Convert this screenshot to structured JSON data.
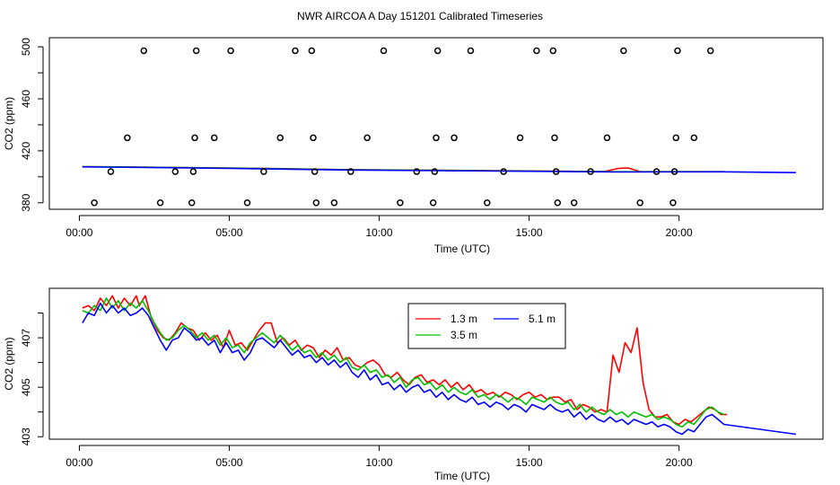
{
  "figure": {
    "title": "NWR AIRCOA A  Day 151201  Calibrated Timeseries"
  },
  "chart_data": [
    {
      "type": "scatter+line",
      "xlabel": "Time (UTC)",
      "ylabel": "CO2 (ppm)",
      "xlim": [
        -1.0,
        24.8
      ],
      "ylim": [
        375,
        507
      ],
      "xticks": [
        {
          "v": 0,
          "label": "00:00"
        },
        {
          "v": 5,
          "label": "05:00"
        },
        {
          "v": 10,
          "label": "10:00"
        },
        {
          "v": 15,
          "label": "15:00"
        },
        {
          "v": 20,
          "label": "20:00"
        }
      ],
      "yticks_major": [
        {
          "v": 380,
          "label": "380"
        },
        {
          "v": 420,
          "label": "420"
        },
        {
          "v": 460,
          "label": "460"
        },
        {
          "v": 500,
          "label": "500"
        }
      ],
      "yticks_minor": [
        400,
        440,
        480
      ],
      "markers": [
        {
          "x": 0.5,
          "y": 380
        },
        {
          "x": 1.05,
          "y": 404
        },
        {
          "x": 1.6,
          "y": 430
        },
        {
          "x": 2.15,
          "y": 497
        },
        {
          "x": 2.7,
          "y": 380
        },
        {
          "x": 3.2,
          "y": 404
        },
        {
          "x": 3.75,
          "y": 380
        },
        {
          "x": 3.8,
          "y": 404
        },
        {
          "x": 3.85,
          "y": 430
        },
        {
          "x": 3.9,
          "y": 497
        },
        {
          "x": 4.5,
          "y": 430
        },
        {
          "x": 5.05,
          "y": 497
        },
        {
          "x": 5.6,
          "y": 380
        },
        {
          "x": 6.15,
          "y": 404
        },
        {
          "x": 6.7,
          "y": 430
        },
        {
          "x": 7.2,
          "y": 497
        },
        {
          "x": 7.75,
          "y": 497
        },
        {
          "x": 7.8,
          "y": 430
        },
        {
          "x": 7.85,
          "y": 404
        },
        {
          "x": 7.9,
          "y": 380
        },
        {
          "x": 8.5,
          "y": 380
        },
        {
          "x": 9.05,
          "y": 404
        },
        {
          "x": 9.6,
          "y": 430
        },
        {
          "x": 10.15,
          "y": 497
        },
        {
          "x": 10.7,
          "y": 380
        },
        {
          "x": 11.25,
          "y": 404
        },
        {
          "x": 11.8,
          "y": 380
        },
        {
          "x": 11.85,
          "y": 404
        },
        {
          "x": 11.9,
          "y": 430
        },
        {
          "x": 11.95,
          "y": 497
        },
        {
          "x": 12.5,
          "y": 430
        },
        {
          "x": 13.05,
          "y": 497
        },
        {
          "x": 13.6,
          "y": 380
        },
        {
          "x": 14.15,
          "y": 404
        },
        {
          "x": 14.7,
          "y": 430
        },
        {
          "x": 15.25,
          "y": 497
        },
        {
          "x": 15.8,
          "y": 497
        },
        {
          "x": 15.85,
          "y": 430
        },
        {
          "x": 15.9,
          "y": 404
        },
        {
          "x": 15.95,
          "y": 380
        },
        {
          "x": 16.5,
          "y": 380
        },
        {
          "x": 17.05,
          "y": 404
        },
        {
          "x": 17.6,
          "y": 430
        },
        {
          "x": 18.15,
          "y": 497
        },
        {
          "x": 18.7,
          "y": 380
        },
        {
          "x": 19.25,
          "y": 404
        },
        {
          "x": 19.8,
          "y": 380
        },
        {
          "x": 19.85,
          "y": 404
        },
        {
          "x": 19.9,
          "y": 430
        },
        {
          "x": 19.95,
          "y": 497
        },
        {
          "x": 20.5,
          "y": 430
        },
        {
          "x": 21.05,
          "y": 497
        }
      ],
      "series": [
        {
          "name": "1.3 m",
          "color": "#ff0000",
          "x": [
            0.1,
            3,
            6,
            9,
            12,
            15,
            17.5,
            18.0,
            18.3,
            18.7,
            19.0,
            21.5
          ],
          "values": [
            407.8,
            407.2,
            406.5,
            405.5,
            405.0,
            404.5,
            404.0,
            406.5,
            406.8,
            404.0,
            403.9,
            403.9
          ]
        },
        {
          "name": "3.5 m",
          "color": "#00c000",
          "x": [
            0.1,
            3,
            6,
            9,
            12,
            15,
            18,
            21.5
          ],
          "values": [
            407.8,
            407.2,
            406.4,
            405.4,
            404.9,
            404.4,
            403.9,
            403.9
          ]
        },
        {
          "name": "5.1 m",
          "color": "#0000ff",
          "x": [
            0.1,
            3,
            6,
            9,
            12,
            15,
            18,
            21.5,
            23.9
          ],
          "values": [
            407.6,
            407.0,
            406.2,
            405.2,
            404.7,
            404.2,
            403.7,
            403.8,
            403.2
          ]
        }
      ]
    },
    {
      "type": "line",
      "xlabel": "Time (UTC)",
      "ylabel": "CO2 (ppm)",
      "xlim": [
        -1.0,
        24.8
      ],
      "ylim": [
        402.9,
        409.0
      ],
      "xticks": [
        {
          "v": 0,
          "label": "00:00"
        },
        {
          "v": 5,
          "label": "05:00"
        },
        {
          "v": 10,
          "label": "10:00"
        },
        {
          "v": 15,
          "label": "15:00"
        },
        {
          "v": 20,
          "label": "20:00"
        }
      ],
      "yticks_major": [
        {
          "v": 403,
          "label": "403"
        },
        {
          "v": 405,
          "label": "405"
        },
        {
          "v": 407,
          "label": "407"
        }
      ],
      "yticks_minor": [
        404,
        406,
        408
      ],
      "legend": {
        "position": "top-center",
        "entries": [
          {
            "label": "1.3 m",
            "color": "#ff0000"
          },
          {
            "label": "5.1 m",
            "color": "#0000ff"
          },
          {
            "label": "3.5 m",
            "color": "#00c000"
          }
        ]
      },
      "series": [
        {
          "name": "1.3 m",
          "color": "#ff0000",
          "x": [
            0.1,
            0.3,
            0.5,
            0.7,
            0.9,
            1.1,
            1.3,
            1.5,
            1.7,
            1.9,
            2.0,
            2.2,
            2.4,
            2.6,
            2.8,
            3.0,
            3.2,
            3.4,
            3.6,
            3.8,
            4.0,
            4.2,
            4.4,
            4.6,
            4.8,
            5.0,
            5.2,
            5.4,
            5.6,
            5.8,
            6.0,
            6.2,
            6.4,
            6.6,
            6.8,
            7.0,
            7.2,
            7.4,
            7.6,
            7.8,
            8.0,
            8.2,
            8.4,
            8.6,
            8.8,
            9.0,
            9.2,
            9.4,
            9.6,
            9.8,
            10.0,
            10.2,
            10.4,
            10.6,
            10.8,
            11.0,
            11.2,
            11.4,
            11.6,
            11.8,
            12.0,
            12.2,
            12.4,
            12.6,
            12.8,
            13.0,
            13.2,
            13.4,
            13.6,
            13.8,
            14.0,
            14.2,
            14.4,
            14.6,
            14.8,
            15.0,
            15.2,
            15.4,
            15.6,
            15.8,
            16.0,
            16.2,
            16.4,
            16.6,
            16.8,
            17.0,
            17.2,
            17.4,
            17.6,
            17.8,
            18.0,
            18.2,
            18.4,
            18.6,
            18.8,
            19.0,
            19.2,
            19.4,
            19.6,
            19.8,
            20.0,
            20.2,
            20.4,
            20.6,
            20.8,
            21.0,
            21.2,
            21.4,
            21.6
          ],
          "values": [
            408.2,
            408.3,
            408.1,
            408.6,
            408.3,
            408.7,
            408.2,
            408.6,
            408.3,
            408.7,
            408.3,
            408.7,
            407.8,
            407.3,
            407.0,
            406.9,
            407.2,
            407.6,
            407.4,
            407.3,
            406.9,
            407.2,
            406.9,
            407.1,
            406.6,
            407.3,
            406.7,
            406.8,
            406.5,
            406.9,
            407.3,
            407.6,
            407.6,
            406.8,
            407.0,
            406.7,
            406.9,
            406.5,
            406.7,
            406.6,
            406.2,
            406.5,
            406.3,
            406.6,
            406.1,
            406.2,
            405.9,
            405.8,
            406.0,
            406.1,
            405.9,
            405.5,
            405.4,
            405.6,
            405.3,
            405.1,
            405.4,
            405.5,
            405.2,
            405.3,
            405.1,
            405.3,
            405.0,
            405.2,
            404.9,
            405.1,
            404.8,
            404.9,
            404.7,
            404.8,
            404.6,
            404.8,
            404.7,
            404.5,
            404.7,
            404.8,
            404.6,
            404.7,
            404.5,
            404.6,
            404.6,
            404.4,
            404.5,
            404.1,
            404.3,
            404.2,
            404.0,
            404.1,
            404.0,
            406.3,
            405.6,
            406.8,
            406.4,
            407.4,
            405.2,
            404.1,
            403.8,
            403.8,
            403.9,
            403.6,
            403.5,
            403.7,
            403.6,
            403.8,
            404.0,
            404.2,
            404.1,
            403.9,
            403.9
          ]
        },
        {
          "name": "3.5 m",
          "color": "#00c000",
          "x": [
            0.1,
            0.3,
            0.5,
            0.7,
            0.9,
            1.1,
            1.3,
            1.5,
            1.7,
            1.9,
            2.1,
            2.3,
            2.5,
            2.7,
            2.9,
            3.1,
            3.3,
            3.5,
            3.7,
            3.9,
            4.1,
            4.3,
            4.5,
            4.7,
            4.9,
            5.1,
            5.3,
            5.5,
            5.7,
            5.9,
            6.1,
            6.3,
            6.5,
            6.7,
            6.9,
            7.1,
            7.3,
            7.5,
            7.7,
            7.9,
            8.1,
            8.3,
            8.5,
            8.7,
            8.9,
            9.1,
            9.3,
            9.5,
            9.7,
            9.9,
            10.1,
            10.3,
            10.5,
            10.7,
            10.9,
            11.1,
            11.3,
            11.5,
            11.7,
            11.9,
            12.1,
            12.3,
            12.5,
            12.7,
            12.9,
            13.1,
            13.3,
            13.5,
            13.7,
            13.9,
            14.1,
            14.3,
            14.5,
            14.7,
            14.9,
            15.1,
            15.3,
            15.5,
            15.7,
            15.9,
            16.1,
            16.3,
            16.5,
            16.7,
            16.9,
            17.1,
            17.3,
            17.5,
            17.7,
            17.9,
            18.1,
            18.3,
            18.5,
            18.7,
            18.9,
            19.1,
            19.3,
            19.5,
            19.7,
            19.9,
            20.1,
            20.3,
            20.5,
            20.7,
            20.9,
            21.1,
            21.3,
            21.5
          ],
          "values": [
            408.1,
            408.0,
            408.3,
            408.1,
            408.6,
            408.2,
            408.5,
            408.1,
            408.4,
            408.2,
            408.5,
            408.1,
            407.6,
            407.2,
            406.9,
            407.0,
            407.3,
            407.5,
            407.3,
            407.0,
            407.2,
            406.9,
            407.1,
            406.7,
            407.0,
            406.6,
            406.7,
            406.4,
            406.8,
            407.0,
            407.2,
            407.0,
            406.8,
            407.1,
            406.8,
            406.5,
            406.7,
            406.4,
            406.5,
            406.2,
            406.4,
            406.1,
            406.3,
            406.0,
            406.2,
            405.8,
            405.7,
            405.9,
            405.6,
            405.7,
            405.4,
            405.5,
            405.2,
            405.4,
            405.0,
            405.3,
            405.4,
            405.1,
            405.2,
            404.9,
            405.1,
            404.8,
            405.0,
            404.8,
            404.7,
            404.9,
            404.6,
            404.7,
            404.5,
            404.7,
            404.6,
            404.4,
            404.6,
            404.5,
            404.3,
            404.6,
            404.5,
            404.4,
            404.6,
            404.4,
            404.3,
            404.4,
            404.1,
            404.3,
            404.0,
            404.2,
            404.0,
            403.9,
            404.1,
            403.9,
            404.0,
            403.8,
            404.0,
            403.9,
            403.8,
            403.9,
            403.7,
            403.8,
            403.7,
            403.5,
            403.4,
            403.6,
            403.5,
            403.8,
            404.1,
            404.2,
            404.0,
            403.9
          ]
        },
        {
          "name": "5.1 m",
          "color": "#0000ff",
          "x": [
            0.1,
            0.3,
            0.5,
            0.7,
            0.9,
            1.1,
            1.3,
            1.5,
            1.7,
            1.9,
            2.1,
            2.3,
            2.5,
            2.7,
            2.9,
            3.1,
            3.3,
            3.5,
            3.7,
            3.9,
            4.1,
            4.3,
            4.5,
            4.7,
            4.9,
            5.1,
            5.3,
            5.5,
            5.7,
            5.9,
            6.1,
            6.3,
            6.5,
            6.7,
            6.9,
            7.1,
            7.3,
            7.5,
            7.7,
            7.9,
            8.1,
            8.3,
            8.5,
            8.7,
            8.9,
            9.1,
            9.3,
            9.5,
            9.7,
            9.9,
            10.1,
            10.3,
            10.5,
            10.7,
            10.9,
            11.1,
            11.3,
            11.5,
            11.7,
            11.9,
            12.1,
            12.3,
            12.5,
            12.7,
            12.9,
            13.1,
            13.3,
            13.5,
            13.7,
            13.9,
            14.1,
            14.3,
            14.5,
            14.7,
            14.9,
            15.1,
            15.3,
            15.5,
            15.7,
            15.9,
            16.1,
            16.3,
            16.5,
            16.7,
            16.9,
            17.1,
            17.3,
            17.5,
            17.7,
            17.9,
            18.1,
            18.3,
            18.5,
            18.7,
            18.9,
            19.1,
            19.3,
            19.5,
            19.7,
            19.9,
            20.1,
            20.3,
            20.5,
            20.7,
            20.9,
            21.1,
            21.3,
            21.5,
            23.9
          ],
          "values": [
            407.6,
            408.0,
            407.9,
            408.4,
            408.0,
            408.3,
            408.0,
            408.2,
            407.9,
            408.0,
            408.2,
            407.9,
            407.4,
            406.9,
            406.5,
            406.9,
            407.0,
            407.4,
            407.2,
            406.9,
            407.0,
            406.7,
            406.9,
            406.4,
            406.8,
            406.4,
            406.5,
            406.1,
            406.4,
            406.9,
            407.0,
            406.8,
            406.6,
            406.9,
            406.6,
            406.3,
            406.5,
            406.2,
            406.3,
            406.0,
            406.2,
            405.9,
            406.1,
            405.8,
            406.0,
            405.6,
            405.4,
            405.7,
            405.3,
            405.5,
            405.1,
            405.2,
            404.9,
            405.1,
            404.8,
            405.0,
            405.1,
            404.8,
            404.9,
            404.6,
            404.8,
            404.5,
            404.7,
            404.5,
            404.4,
            404.6,
            404.3,
            404.4,
            404.2,
            404.4,
            404.3,
            404.1,
            404.3,
            404.2,
            404.0,
            404.3,
            404.2,
            404.1,
            404.3,
            404.1,
            404.0,
            404.1,
            403.8,
            404.0,
            403.7,
            403.9,
            403.7,
            403.6,
            403.8,
            403.6,
            403.7,
            403.5,
            403.7,
            403.6,
            403.5,
            403.6,
            403.4,
            403.5,
            403.4,
            403.2,
            403.1,
            403.3,
            403.2,
            403.5,
            403.8,
            403.9,
            403.7,
            403.5,
            403.1
          ]
        }
      ]
    }
  ]
}
